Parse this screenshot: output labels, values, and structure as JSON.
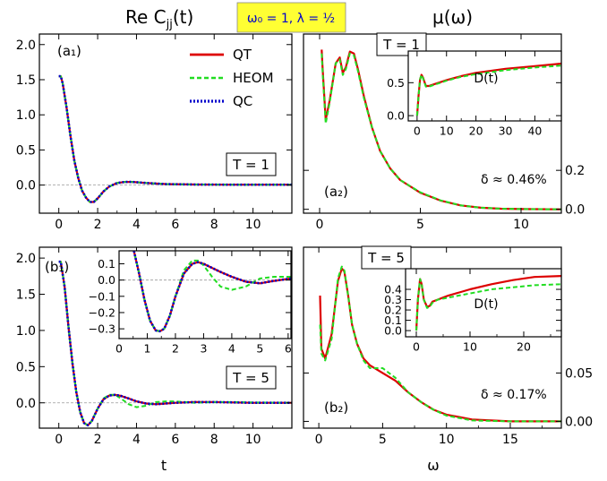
{
  "figure": {
    "title_left": "Re C",
    "title_left_sub": "jj",
    "title_left_arg": "(t)",
    "title_right": "μ(ω)",
    "param_box": "ω₀ = 1, λ = ½",
    "param_box_color": "#ffff33",
    "xlabel_left": "t",
    "xlabel_right": "ω",
    "colors": {
      "QT": "#dd0000",
      "HEOM": "#22dd22",
      "QC": "#0000cc",
      "zero_line": "#999999"
    }
  },
  "legend": {
    "items": [
      {
        "series": "QT",
        "label": "QT",
        "color": "#dd0000",
        "style": "solid"
      },
      {
        "series": "HEOM",
        "label": "HEOM",
        "color": "#22dd22",
        "style": "dashed"
      },
      {
        "series": "QC",
        "label": "QC",
        "color": "#0000cc",
        "style": "dotted"
      }
    ]
  },
  "chart_data": [
    {
      "id": "a1",
      "type": "line",
      "panel_label": "(a₁)",
      "temp_label": "T = 1",
      "xlim": [
        -1,
        12
      ],
      "ylim": [
        -0.4,
        2.15
      ],
      "xticks": [
        0,
        2,
        4,
        6,
        8,
        10
      ],
      "yticks": [
        0.0,
        0.5,
        1.0,
        1.5,
        2.0
      ],
      "yticklabels": [
        "0.0",
        "0.5",
        "1.0",
        "1.5",
        "2.0"
      ],
      "series": [
        {
          "name": "QT",
          "x": [
            0,
            0.1,
            0.2,
            0.4,
            0.6,
            0.8,
            1.0,
            1.2,
            1.4,
            1.6,
            1.8,
            2.0,
            2.3,
            2.6,
            3.0,
            3.4,
            3.8,
            4.5,
            5.5,
            7,
            9,
            12
          ],
          "y": [
            1.55,
            1.55,
            1.45,
            1.1,
            0.7,
            0.35,
            0.1,
            -0.08,
            -0.18,
            -0.24,
            -0.24,
            -0.19,
            -0.09,
            -0.02,
            0.03,
            0.045,
            0.045,
            0.03,
            0.015,
            0.008,
            0.005,
            0.005
          ]
        },
        {
          "name": "HEOM",
          "x": [
            0,
            0.1,
            0.2,
            0.4,
            0.6,
            0.8,
            1.0,
            1.2,
            1.4,
            1.6,
            1.8,
            2.0,
            2.3,
            2.6,
            3.0,
            3.4,
            3.8,
            4.5,
            5.5,
            7,
            9,
            12
          ],
          "y": [
            1.55,
            1.55,
            1.45,
            1.1,
            0.7,
            0.35,
            0.1,
            -0.08,
            -0.18,
            -0.24,
            -0.24,
            -0.19,
            -0.09,
            -0.02,
            0.03,
            0.045,
            0.045,
            0.03,
            0.015,
            0.008,
            0.005,
            0.005
          ]
        },
        {
          "name": "QC",
          "x": [
            0,
            0.1,
            0.2,
            0.4,
            0.6,
            0.8,
            1.0,
            1.2,
            1.4,
            1.6,
            1.8,
            2.0,
            2.3,
            2.6,
            3.0,
            3.4,
            3.8,
            4.5,
            5.5,
            7,
            9,
            12
          ],
          "y": [
            1.55,
            1.55,
            1.45,
            1.1,
            0.7,
            0.35,
            0.1,
            -0.08,
            -0.18,
            -0.24,
            -0.24,
            -0.19,
            -0.09,
            -0.02,
            0.03,
            0.045,
            0.045,
            0.03,
            0.015,
            0.008,
            0.005,
            0.005
          ]
        }
      ]
    },
    {
      "id": "b1",
      "type": "line",
      "panel_label": "(b₁)",
      "temp_label": "T = 5",
      "xlim": [
        -1,
        12
      ],
      "ylim": [
        -0.35,
        2.15
      ],
      "xticks": [
        0,
        2,
        4,
        6,
        8,
        10
      ],
      "yticks": [
        0.0,
        0.5,
        1.0,
        1.5,
        2.0
      ],
      "yticklabels": [
        "0.0",
        "0.5",
        "1.0",
        "1.5",
        "2.0"
      ],
      "series": [
        {
          "name": "QT",
          "x": [
            0,
            0.1,
            0.3,
            0.5,
            0.7,
            0.9,
            1.1,
            1.3,
            1.5,
            1.7,
            2.0,
            2.3,
            2.6,
            2.9,
            3.2,
            3.6,
            4.0,
            4.5,
            5.0,
            5.5,
            6,
            7,
            8,
            9,
            10,
            12
          ],
          "y": [
            1.95,
            1.95,
            1.6,
            1.05,
            0.55,
            0.15,
            -0.13,
            -0.28,
            -0.31,
            -0.25,
            -0.08,
            0.05,
            0.1,
            0.11,
            0.095,
            0.06,
            0.02,
            -0.01,
            -0.02,
            -0.01,
            0.0,
            0.01,
            0.01,
            0.005,
            0.0,
            0.0
          ]
        },
        {
          "name": "HEOM",
          "x": [
            0,
            0.1,
            0.3,
            0.5,
            0.7,
            0.9,
            1.1,
            1.3,
            1.5,
            1.7,
            2.0,
            2.3,
            2.6,
            2.9,
            3.2,
            3.6,
            4.0,
            4.5,
            5.0,
            5.5,
            6,
            7,
            8,
            9,
            10,
            12
          ],
          "y": [
            1.95,
            1.95,
            1.6,
            1.05,
            0.55,
            0.15,
            -0.13,
            -0.28,
            -0.31,
            -0.25,
            -0.08,
            0.06,
            0.11,
            0.11,
            0.06,
            -0.02,
            -0.06,
            -0.04,
            0.01,
            0.02,
            0.02,
            0.0,
            0.01,
            0.01,
            0.005,
            0.0
          ]
        },
        {
          "name": "QC",
          "x": [
            0,
            0.1,
            0.3,
            0.5,
            0.7,
            0.9,
            1.1,
            1.3,
            1.5,
            1.7,
            2.0,
            2.3,
            2.6,
            2.9,
            3.2,
            3.6,
            4.0,
            4.5,
            5.0,
            5.5,
            6,
            7,
            8,
            9,
            10,
            12
          ],
          "y": [
            1.95,
            1.95,
            1.6,
            1.05,
            0.55,
            0.15,
            -0.13,
            -0.28,
            -0.31,
            -0.25,
            -0.08,
            0.05,
            0.1,
            0.11,
            0.095,
            0.06,
            0.02,
            -0.01,
            -0.02,
            -0.01,
            0.0,
            0.01,
            0.01,
            0.005,
            0.0,
            0.0
          ]
        }
      ]
    },
    {
      "id": "b1-inset",
      "type": "line",
      "xlim": [
        0,
        6.1
      ],
      "ylim": [
        -0.36,
        0.18
      ],
      "xticks": [
        0,
        1,
        2,
        3,
        4,
        5,
        6
      ],
      "yticks": [
        -0.3,
        -0.2,
        -0.1,
        0.0,
        0.1
      ],
      "yticklabels": [
        "−0.3",
        "−0.2",
        "−0.1",
        "0.0",
        "0.1"
      ],
      "series": [
        {
          "name": "QT",
          "x": [
            0.5,
            0.7,
            0.9,
            1.1,
            1.3,
            1.45,
            1.6,
            1.8,
            2.0,
            2.3,
            2.6,
            2.8,
            3.0,
            3.3,
            3.6,
            4.0,
            4.5,
            5.0,
            5.5,
            6.1
          ],
          "y": [
            0.2,
            0.05,
            -0.12,
            -0.25,
            -0.31,
            -0.315,
            -0.3,
            -0.22,
            -0.1,
            0.04,
            0.1,
            0.11,
            0.1,
            0.075,
            0.05,
            0.02,
            -0.01,
            -0.02,
            -0.005,
            0.01
          ]
        },
        {
          "name": "HEOM",
          "x": [
            0.5,
            0.7,
            0.9,
            1.1,
            1.3,
            1.45,
            1.6,
            1.8,
            2.0,
            2.3,
            2.6,
            2.8,
            3.0,
            3.3,
            3.6,
            4.0,
            4.5,
            5.0,
            5.5,
            6.1
          ],
          "y": [
            0.2,
            0.05,
            -0.12,
            -0.25,
            -0.31,
            -0.315,
            -0.3,
            -0.22,
            -0.1,
            0.06,
            0.12,
            0.12,
            0.09,
            0.02,
            -0.04,
            -0.06,
            -0.04,
            0.01,
            0.02,
            0.02
          ]
        },
        {
          "name": "QC",
          "x": [
            0.5,
            0.7,
            0.9,
            1.1,
            1.3,
            1.45,
            1.6,
            1.8,
            2.0,
            2.3,
            2.6,
            2.8,
            3.0,
            3.3,
            3.6,
            4.0,
            4.5,
            5.0,
            5.5,
            6.1
          ],
          "y": [
            0.2,
            0.05,
            -0.12,
            -0.25,
            -0.31,
            -0.315,
            -0.3,
            -0.22,
            -0.1,
            0.04,
            0.1,
            0.11,
            0.1,
            0.075,
            0.05,
            0.02,
            -0.01,
            -0.02,
            -0.005,
            0.01
          ]
        }
      ]
    },
    {
      "id": "a2",
      "type": "line",
      "panel_label": "(a₂)",
      "temp_label": "T = 1",
      "delta_label": "δ ≈ 0.46%",
      "xlim": [
        -0.8,
        12
      ],
      "ylim": [
        -0.02,
        0.9
      ],
      "xticks": [
        0,
        5,
        10
      ],
      "yticks": [
        0.0,
        0.2
      ],
      "yticklabels": [
        "0.0",
        "0.2"
      ],
      "series": [
        {
          "name": "QT",
          "x": [
            0.1,
            0.15,
            0.3,
            0.5,
            0.8,
            1.0,
            1.15,
            1.3,
            1.5,
            1.7,
            1.9,
            2.2,
            2.6,
            3.0,
            3.5,
            4,
            5,
            6,
            7,
            8,
            9,
            10,
            12
          ],
          "y": [
            0.82,
            0.72,
            0.46,
            0.56,
            0.75,
            0.78,
            0.7,
            0.73,
            0.81,
            0.8,
            0.72,
            0.58,
            0.42,
            0.3,
            0.21,
            0.15,
            0.085,
            0.045,
            0.02,
            0.008,
            0.003,
            0.001,
            0.0
          ]
        },
        {
          "name": "HEOM",
          "x": [
            0.1,
            0.15,
            0.3,
            0.5,
            0.8,
            1.0,
            1.15,
            1.3,
            1.5,
            1.7,
            1.9,
            2.2,
            2.6,
            3.0,
            3.5,
            4,
            5,
            6,
            7,
            8,
            9,
            10,
            12
          ],
          "y": [
            0.8,
            0.7,
            0.44,
            0.55,
            0.75,
            0.77,
            0.69,
            0.72,
            0.8,
            0.79,
            0.71,
            0.57,
            0.42,
            0.3,
            0.21,
            0.15,
            0.087,
            0.046,
            0.02,
            0.008,
            0.003,
            0.001,
            0.0
          ]
        }
      ]
    },
    {
      "id": "a2-inset",
      "type": "line",
      "inset_label": "D(t)",
      "xlim": [
        -3,
        49
      ],
      "ylim": [
        -0.08,
        0.98
      ],
      "xticks": [
        0,
        10,
        20,
        30,
        40
      ],
      "yticks": [
        0.0,
        0.5
      ],
      "yticklabels": [
        "0.0",
        "0.5"
      ],
      "series": [
        {
          "name": "QT",
          "x": [
            0,
            0.5,
            1,
            1.5,
            2,
            3,
            4,
            6,
            10,
            15,
            20,
            30,
            40,
            49
          ],
          "y": [
            0.0,
            0.3,
            0.55,
            0.62,
            0.58,
            0.45,
            0.45,
            0.48,
            0.54,
            0.6,
            0.65,
            0.71,
            0.75,
            0.79
          ]
        },
        {
          "name": "HEOM",
          "x": [
            0,
            0.5,
            1,
            1.5,
            2,
            3,
            4,
            6,
            10,
            15,
            20,
            30,
            40,
            49
          ],
          "y": [
            0.0,
            0.3,
            0.55,
            0.62,
            0.57,
            0.44,
            0.44,
            0.47,
            0.53,
            0.59,
            0.63,
            0.69,
            0.73,
            0.76
          ]
        }
      ]
    },
    {
      "id": "b2",
      "type": "line",
      "panel_label": "(b₂)",
      "temp_label": "T = 5",
      "delta_label": "δ ≈ 0.17%",
      "xlim": [
        -1.2,
        19
      ],
      "ylim": [
        -0.007,
        0.18
      ],
      "xticks": [
        0,
        5,
        10,
        15
      ],
      "yticks": [
        0.0,
        0.05
      ],
      "yticklabels": [
        "0.00",
        "0.05"
      ],
      "series": [
        {
          "name": "QT",
          "x": [
            0.1,
            0.2,
            0.5,
            1.0,
            1.5,
            1.8,
            2.0,
            2.3,
            2.6,
            3.0,
            3.5,
            4,
            5,
            6,
            7,
            8,
            9,
            10,
            12,
            15,
            19
          ],
          "y": [
            0.13,
            0.075,
            0.065,
            0.09,
            0.145,
            0.158,
            0.155,
            0.13,
            0.1,
            0.08,
            0.065,
            0.058,
            0.05,
            0.042,
            0.03,
            0.02,
            0.012,
            0.007,
            0.002,
            0.0,
            0.0
          ]
        },
        {
          "name": "HEOM",
          "x": [
            0.1,
            0.2,
            0.5,
            1.0,
            1.5,
            1.8,
            2.0,
            2.3,
            2.6,
            3.0,
            3.5,
            4,
            5,
            5.5,
            6,
            7,
            8,
            9,
            10,
            12,
            15,
            19
          ],
          "y": [
            0.1,
            0.07,
            0.063,
            0.085,
            0.148,
            0.16,
            0.156,
            0.13,
            0.1,
            0.08,
            0.063,
            0.055,
            0.055,
            0.05,
            0.045,
            0.03,
            0.02,
            0.012,
            0.006,
            0.001,
            0.0,
            0.0
          ]
        }
      ]
    },
    {
      "id": "b2-inset",
      "type": "line",
      "inset_label": "D(t)",
      "xlim": [
        -2,
        27
      ],
      "ylim": [
        -0.06,
        0.6
      ],
      "xticks": [
        0,
        10,
        20
      ],
      "yticks": [
        0.0,
        0.1,
        0.2,
        0.3,
        0.4
      ],
      "yticklabels": [
        "0.0",
        "0.1",
        "0.2",
        "0.3",
        "0.4"
      ],
      "series": [
        {
          "name": "QT",
          "x": [
            0,
            0.3,
            0.7,
            1.0,
            1.4,
            2.0,
            2.5,
            3,
            4,
            5,
            6,
            8,
            10,
            14,
            18,
            22,
            27
          ],
          "y": [
            0.0,
            0.3,
            0.5,
            0.45,
            0.3,
            0.23,
            0.24,
            0.28,
            0.3,
            0.32,
            0.34,
            0.37,
            0.4,
            0.45,
            0.49,
            0.52,
            0.53
          ]
        },
        {
          "name": "HEOM",
          "x": [
            0,
            0.3,
            0.7,
            1.0,
            1.4,
            2.0,
            2.5,
            3,
            4,
            5,
            6,
            8,
            10,
            14,
            18,
            22,
            27
          ],
          "y": [
            0.0,
            0.3,
            0.5,
            0.45,
            0.3,
            0.22,
            0.23,
            0.27,
            0.3,
            0.31,
            0.32,
            0.34,
            0.36,
            0.4,
            0.42,
            0.44,
            0.45
          ]
        }
      ]
    }
  ]
}
